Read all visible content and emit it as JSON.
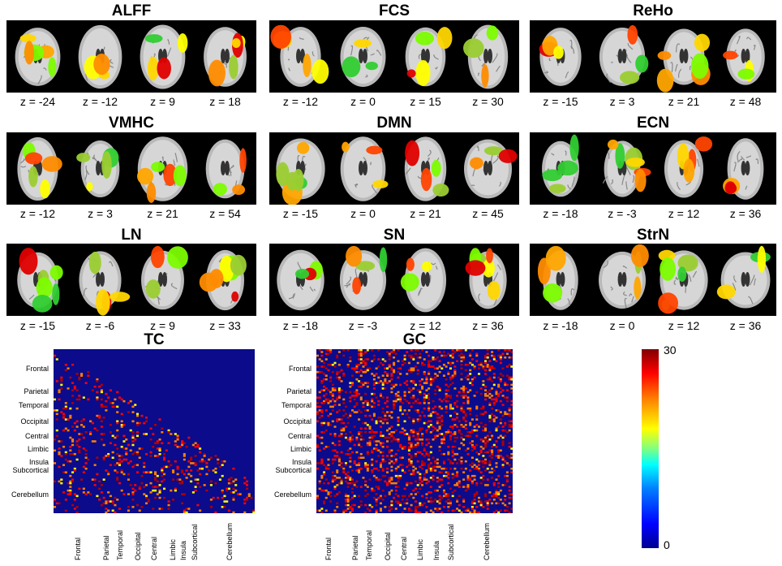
{
  "panels": [
    {
      "title": "ALFF",
      "z": [
        "z = -24",
        "z = -12",
        "z = 9",
        "z = 18"
      ]
    },
    {
      "title": "FCS",
      "z": [
        "z = -12",
        "z = 0",
        "z = 15",
        "z = 30"
      ]
    },
    {
      "title": "ReHo",
      "z": [
        "z = -15",
        "z = 3",
        "z = 21",
        "z = 48"
      ]
    },
    {
      "title": "VMHC",
      "z": [
        "z = -12",
        "z = 3",
        "z = 21",
        "z = 54"
      ]
    },
    {
      "title": "DMN",
      "z": [
        "z = -15",
        "z = 0",
        "z = 21",
        "z = 45"
      ]
    },
    {
      "title": "ECN",
      "z": [
        "z = -18",
        "z = -3",
        "z = 12",
        "z = 36"
      ]
    },
    {
      "title": "LN",
      "z": [
        "z = -15",
        "z = -6",
        "z = 9",
        "z = 33"
      ]
    },
    {
      "title": "SN",
      "z": [
        "z = -18",
        "z = -3",
        "z = 12",
        "z = 36"
      ]
    },
    {
      "title": "StrN",
      "z": [
        "z = -18",
        "z = 0",
        "z = 12",
        "z = 36"
      ]
    }
  ],
  "matrices": {
    "tc": {
      "title": "TC"
    },
    "gc": {
      "title": "GC"
    },
    "regions": [
      "Frontal",
      "Parietal",
      "Temporal",
      "Occipital",
      "Central",
      "Limbic",
      "Insula",
      "Subcortical",
      "Cerebellum"
    ]
  },
  "colorbar": {
    "max": "30",
    "min": "0"
  },
  "chart_data": {
    "type": "heatmap",
    "colorbar_range": [
      0,
      30
    ],
    "colormap": "jet",
    "matrices": [
      "TC",
      "GC"
    ]
  }
}
